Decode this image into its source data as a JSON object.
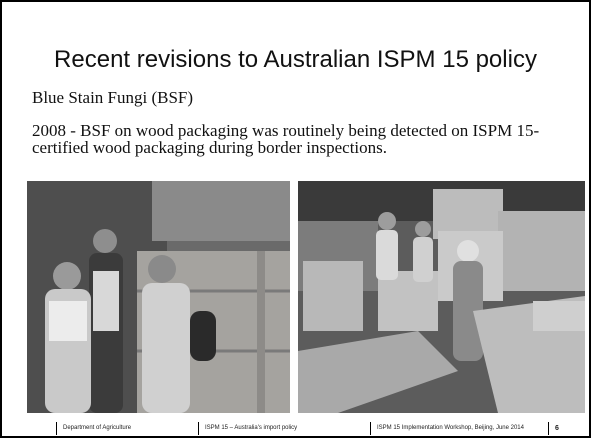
{
  "header": {
    "title": "Recent revisions to Australian ISPM 15 policy"
  },
  "body": {
    "heading": "Blue Stain Fungi (BSF)",
    "paragraph": "2008 - BSF on wood packaging was routinely being detected on ISPM 15-certified wood packaging during border inspections."
  },
  "footer": {
    "department": "Department of Agriculture",
    "presentation": "ISPM 15 – Australia's import policy",
    "event": "ISPM 15 Implementation Workshop, Beijing, June 2014",
    "page": "6"
  }
}
